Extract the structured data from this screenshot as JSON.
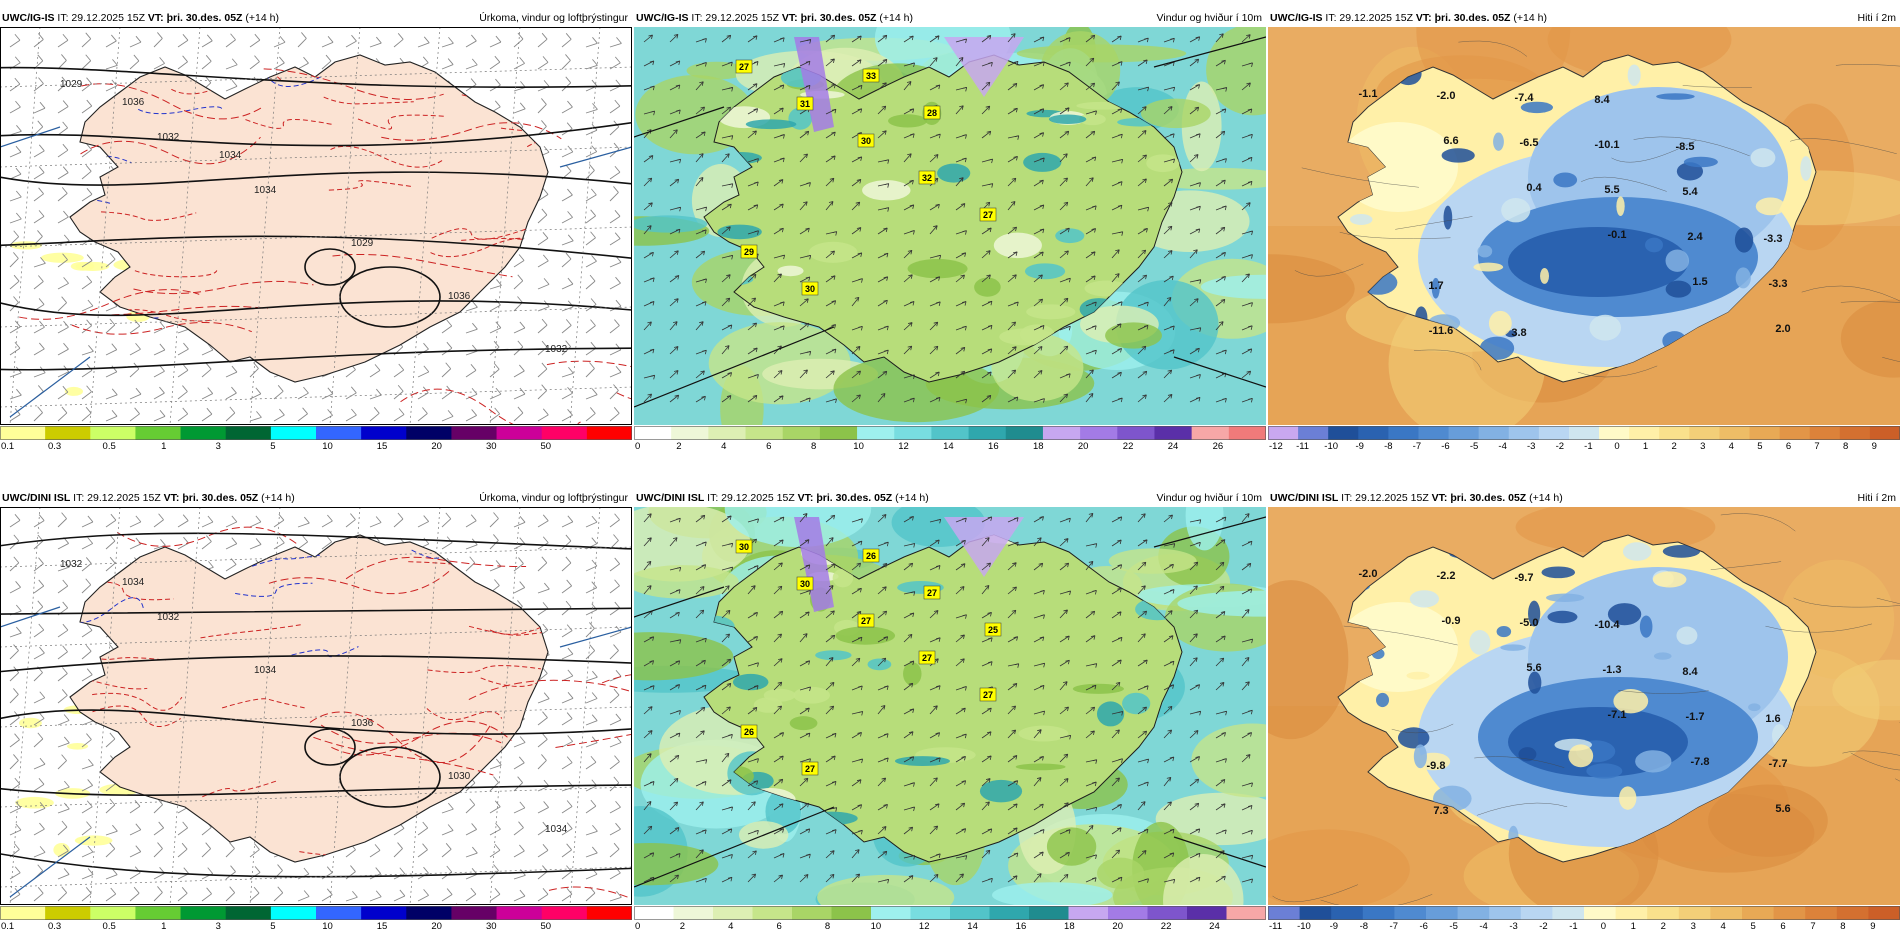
{
  "panels": [
    {
      "row": 0,
      "col": 0,
      "type": "precip",
      "title": {
        "model": "UWC/IG-IS",
        "it": "IT: 29.12.2025 15Z",
        "vt": "VT: þri. 30.des. 05Z",
        "lead": "(+14 h)",
        "right": "Úrkoma, vindur og loftþrýstingur"
      },
      "colorbar": {
        "colors": [
          "#ffff99",
          "#cccc00",
          "#ccff66",
          "#66cc33",
          "#009933",
          "#006633",
          "#00ffff",
          "#3366ff",
          "#0000cc",
          "#000066",
          "#660066",
          "#cc0099",
          "#ff0066",
          "#ff0000"
        ],
        "ticks": [
          "0.1",
          "0.3",
          "0.5",
          "1",
          "3",
          "5",
          "10",
          "15",
          "20",
          "30",
          "50"
        ]
      },
      "pressure_labels": [
        "1029",
        "1032",
        "1034",
        "1029",
        "1036",
        "1032",
        "1036",
        "1034"
      ],
      "map_labels": [],
      "wind_badges": []
    },
    {
      "row": 0,
      "col": 1,
      "type": "wind",
      "title": {
        "model": "UWC/IG-IS",
        "it": "IT: 29.12.2025 15Z",
        "vt": "VT: þri. 30.des. 05Z",
        "lead": "(+14 h)",
        "right": "Vindur og hviður í 10m"
      },
      "colorbar": {
        "colors": [
          "#ffffff",
          "#eef7d8",
          "#ddefb3",
          "#c6e58a",
          "#a9d566",
          "#8cc34a",
          "#9ef0ee",
          "#78dde0",
          "#52c4c9",
          "#2fa7ad",
          "#1f8c8f",
          "#c7a7f0",
          "#a37be6",
          "#7e55cc",
          "#5a2fa8",
          "#f7a7a7",
          "#f07a7a"
        ],
        "ticks": [
          "0",
          "2",
          "4",
          "6",
          "8",
          "10",
          "12",
          "14",
          "16",
          "18",
          "20",
          "22",
          "24",
          "26"
        ]
      },
      "map_labels": [],
      "wind_badges": [
        "27",
        "31",
        "30",
        "32",
        "27",
        "29",
        "30",
        "33",
        "28"
      ]
    },
    {
      "row": 0,
      "col": 2,
      "type": "temp",
      "title": {
        "model": "UWC/IG-IS",
        "it": "IT: 29.12.2025 15Z",
        "vt": "VT: þri. 30.des. 05Z",
        "lead": "(+14 h)",
        "right": "Hiti í 2m"
      },
      "colorbar": {
        "colors": [
          "#c9a8f0",
          "#6b7fd6",
          "#1f4f99",
          "#2a62b0",
          "#3a77c4",
          "#4f8ad0",
          "#679dda",
          "#82b1e3",
          "#9ec4ec",
          "#b9d6f2",
          "#cfe6ef",
          "#fffac8",
          "#fff0a8",
          "#f9e18c",
          "#f3cf78",
          "#eebd66",
          "#e8a955",
          "#e29547",
          "#dc823a",
          "#d47030",
          "#cc5f28"
        ],
        "ticks": [
          "-12",
          "-11",
          "-10",
          "-9",
          "-8",
          "-7",
          "-6",
          "-5",
          "-4",
          "-3",
          "-2",
          "-1",
          "0",
          "1",
          "2",
          "3",
          "4",
          "5",
          "6",
          "7",
          "8",
          "9"
        ]
      },
      "map_labels": [
        "-1.1",
        "6.6",
        "0.4",
        "-0.1",
        "1.5",
        "2.0",
        "-2.0",
        "-6.5",
        "5.5",
        "2.4",
        "-3.3",
        "-11.6",
        "-7.4",
        "-10.1",
        "5.4",
        "-3.3",
        "1.7",
        "3.8",
        "8.4",
        "-8.5"
      ],
      "wind_badges": []
    },
    {
      "row": 1,
      "col": 0,
      "type": "precip",
      "title": {
        "model": "UWC/DINI ISL",
        "it": "IT: 29.12.2025 15Z",
        "vt": "VT: þri. 30.des. 05Z",
        "lead": "(+14 h)",
        "right": "Úrkoma, vindur og loftþrýstingur"
      },
      "colorbar": {
        "colors": [
          "#ffff99",
          "#cccc00",
          "#ccff66",
          "#66cc33",
          "#009933",
          "#006633",
          "#00ffff",
          "#3366ff",
          "#0000cc",
          "#000066",
          "#660066",
          "#cc0099",
          "#ff0066",
          "#ff0000"
        ],
        "ticks": [
          "0.1",
          "0.3",
          "0.5",
          "1",
          "3",
          "5",
          "10",
          "15",
          "20",
          "30",
          "50"
        ]
      },
      "pressure_labels": [
        "1032",
        "1032",
        "1034",
        "1036",
        "1030",
        "1034",
        "1034"
      ],
      "map_labels": [],
      "wind_badges": []
    },
    {
      "row": 1,
      "col": 1,
      "type": "wind",
      "title": {
        "model": "UWC/DINI ISL",
        "it": "IT: 29.12.2025 15Z",
        "vt": "VT: þri. 30.des. 05Z",
        "lead": "(+14 h)",
        "right": "Vindur og hviður í 10m"
      },
      "colorbar": {
        "colors": [
          "#ffffff",
          "#eef7d8",
          "#ddefb3",
          "#c6e58a",
          "#a9d566",
          "#8cc34a",
          "#9ef0ee",
          "#78dde0",
          "#52c4c9",
          "#2fa7ad",
          "#1f8c8f",
          "#c7a7f0",
          "#a37be6",
          "#7e55cc",
          "#5a2fa8",
          "#f7a7a7"
        ],
        "ticks": [
          "0",
          "2",
          "4",
          "6",
          "8",
          "10",
          "12",
          "14",
          "16",
          "18",
          "20",
          "22",
          "24"
        ]
      },
      "map_labels": [],
      "wind_badges": [
        "30",
        "30",
        "27",
        "27",
        "27",
        "26",
        "27",
        "26",
        "27",
        "25"
      ]
    },
    {
      "row": 1,
      "col": 2,
      "type": "temp",
      "title": {
        "model": "UWC/DINI ISL",
        "it": "IT: 29.12.2025 15Z",
        "vt": "VT: þri. 30.des. 05Z",
        "lead": "(+14 h)",
        "right": "Hiti í 2m"
      },
      "colorbar": {
        "colors": [
          "#6b7fd6",
          "#1f4f99",
          "#2a62b0",
          "#3a77c4",
          "#4f8ad0",
          "#679dda",
          "#82b1e3",
          "#9ec4ec",
          "#b9d6f2",
          "#cfe6ef",
          "#fffac8",
          "#fff0a8",
          "#f9e18c",
          "#f3cf78",
          "#eebd66",
          "#e8a955",
          "#e29547",
          "#dc823a",
          "#d47030",
          "#cc5f28"
        ],
        "ticks": [
          "-11",
          "-10",
          "-9",
          "-8",
          "-7",
          "-6",
          "-5",
          "-4",
          "-3",
          "-2",
          "-1",
          "0",
          "1",
          "2",
          "3",
          "4",
          "5",
          "6",
          "7",
          "8",
          "9"
        ]
      },
      "map_labels": [
        "-2.0",
        "-0.9",
        "5.6",
        "-7.1",
        "-7.8",
        "5.6",
        "-2.2",
        "-5.0",
        "-1.3",
        "-1.7",
        "-7.7",
        "7.3",
        "-9.7",
        "-10.4",
        "8.4",
        "1.6",
        "-9.8"
      ],
      "wind_badges": []
    }
  ]
}
